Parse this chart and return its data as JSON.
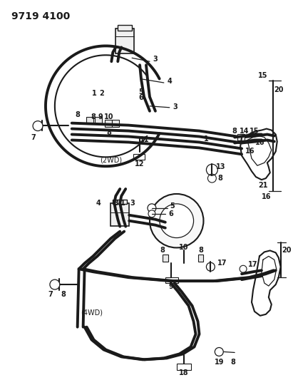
{
  "title": "9719 4100",
  "bg_color": "#ffffff",
  "line_color": "#1a1a1a",
  "title_fontsize": 10,
  "label_fontsize": 7,
  "fig_width": 4.11,
  "fig_height": 5.33,
  "dpi": 100
}
